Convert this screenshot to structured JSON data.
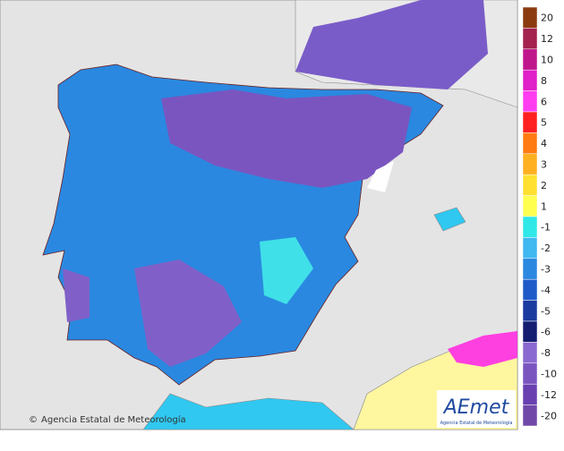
{
  "legend": {
    "items": [
      {
        "label": "20",
        "color": "#8b3a10"
      },
      {
        "label": "12",
        "color": "#a3224e"
      },
      {
        "label": "10",
        "color": "#c0168c"
      },
      {
        "label": "8",
        "color": "#e020c8"
      },
      {
        "label": "6",
        "color": "#ff3cf0"
      },
      {
        "label": "5",
        "color": "#ff2020"
      },
      {
        "label": "4",
        "color": "#ff7a10"
      },
      {
        "label": "3",
        "color": "#ffb020"
      },
      {
        "label": "2",
        "color": "#ffe030"
      },
      {
        "label": "1",
        "color": "#ffff50"
      },
      {
        "label": "-1",
        "color": "#30e8e8"
      },
      {
        "label": "-2",
        "color": "#40b8f0"
      },
      {
        "label": "-3",
        "color": "#2a88e0"
      },
      {
        "label": "-4",
        "color": "#1f5ac8"
      },
      {
        "label": "-5",
        "color": "#1a3aa0"
      },
      {
        "label": "-6",
        "color": "#141e70"
      },
      {
        "label": "-8",
        "color": "#8a6ad0"
      },
      {
        "label": "-10",
        "color": "#7a55c0"
      },
      {
        "label": "-12",
        "color": "#6a40b0"
      },
      {
        "label": "-20",
        "color": "#7048a8"
      }
    ]
  },
  "copyright": "Agencia Estatal de Meteorología",
  "logo": {
    "name": "AEmet",
    "subtitle": "Agencia Estatal de Meteorología"
  }
}
